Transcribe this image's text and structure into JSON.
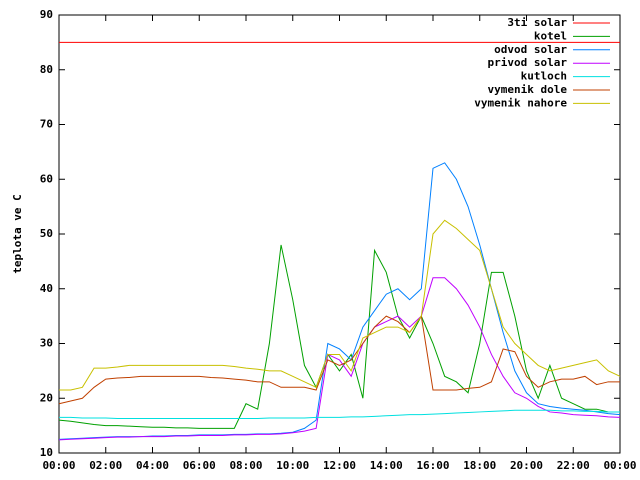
{
  "chart_data": {
    "type": "line",
    "ylabel": "teplota ve C",
    "x": [
      0,
      0.5,
      1,
      1.5,
      2,
      2.5,
      3,
      3.5,
      4,
      4.5,
      5,
      5.5,
      6,
      6.5,
      7,
      7.5,
      8,
      8.5,
      9,
      9.5,
      10,
      10.5,
      11,
      11.5,
      12,
      12.5,
      13,
      13.5,
      14,
      14.5,
      15,
      15.5,
      16,
      16.5,
      17,
      17.5,
      18,
      18.5,
      19,
      19.5,
      20,
      20.5,
      21,
      21.5,
      22,
      22.5,
      23,
      23.5,
      24
    ],
    "xlim": [
      0,
      24
    ],
    "xticks": [
      {
        "value": 0,
        "label": "00:00"
      },
      {
        "value": 2,
        "label": "02:00"
      },
      {
        "value": 4,
        "label": "04:00"
      },
      {
        "value": 6,
        "label": "06:00"
      },
      {
        "value": 8,
        "label": "08:00"
      },
      {
        "value": 10,
        "label": "10:00"
      },
      {
        "value": 12,
        "label": "12:00"
      },
      {
        "value": 14,
        "label": "14:00"
      },
      {
        "value": 16,
        "label": "16:00"
      },
      {
        "value": 18,
        "label": "18:00"
      },
      {
        "value": 20,
        "label": "20:00"
      },
      {
        "value": 22,
        "label": "22:00"
      },
      {
        "value": 24,
        "label": "00:00"
      }
    ],
    "ylim": [
      10,
      90
    ],
    "yticks": [
      10,
      20,
      30,
      40,
      50,
      60,
      70,
      80,
      90
    ],
    "grid": false,
    "legend": "top-right",
    "series": [
      {
        "name": "3ti solar",
        "color": "#ff0000",
        "values": [
          85,
          85,
          85,
          85,
          85,
          85,
          85,
          85,
          85,
          85,
          85,
          85,
          85,
          85,
          85,
          85,
          85,
          85,
          85,
          85,
          85,
          85,
          85,
          85,
          85,
          85,
          85,
          85,
          85,
          85,
          85,
          85,
          85,
          85,
          85,
          85,
          85,
          85,
          85,
          85,
          85,
          85,
          85,
          85,
          85,
          85,
          85,
          85,
          85
        ]
      },
      {
        "name": "kotel",
        "color": "#00a000",
        "values": [
          16,
          15.8,
          15.5,
          15.2,
          15,
          15,
          14.9,
          14.8,
          14.7,
          14.7,
          14.6,
          14.6,
          14.5,
          14.5,
          14.5,
          14.5,
          19,
          18,
          30,
          48,
          38,
          26,
          22,
          28,
          25,
          28,
          20,
          47,
          43,
          35,
          31,
          35,
          30,
          24,
          23,
          21,
          30,
          43,
          43,
          35,
          25,
          20,
          26,
          20,
          19,
          18,
          18,
          17.5,
          17.5
        ]
      },
      {
        "name": "odvod solar",
        "color": "#0080ff",
        "values": [
          12.5,
          12.6,
          12.7,
          12.8,
          12.9,
          13,
          13,
          13,
          13.1,
          13.1,
          13.2,
          13.2,
          13.3,
          13.3,
          13.3,
          13.4,
          13.4,
          13.5,
          13.5,
          13.6,
          13.8,
          14.5,
          16,
          30,
          29,
          27,
          33,
          36,
          39,
          40,
          38,
          40,
          62,
          63,
          60,
          55,
          48,
          40,
          32,
          25,
          21,
          19,
          18.5,
          18.2,
          18,
          17.8,
          17.5,
          17.2,
          17
        ]
      },
      {
        "name": "privod solar",
        "color": "#c000ff",
        "values": [
          12.4,
          12.5,
          12.6,
          12.7,
          12.8,
          12.9,
          12.9,
          13,
          13,
          13,
          13.1,
          13.1,
          13.2,
          13.2,
          13.2,
          13.3,
          13.3,
          13.4,
          13.4,
          13.5,
          13.7,
          14,
          14.5,
          28,
          27,
          24,
          30,
          33,
          34,
          35,
          33,
          35,
          42,
          42,
          40,
          37,
          33,
          28,
          24,
          21,
          20,
          18.5,
          17.5,
          17.3,
          17,
          16.9,
          16.8,
          16.6,
          16.5
        ]
      },
      {
        "name": "kutloch",
        "color": "#00e0e0",
        "values": [
          16.5,
          16.5,
          16.4,
          16.4,
          16.4,
          16.3,
          16.3,
          16.3,
          16.3,
          16.3,
          16.3,
          16.3,
          16.3,
          16.3,
          16.3,
          16.3,
          16.3,
          16.3,
          16.4,
          16.4,
          16.4,
          16.4,
          16.5,
          16.5,
          16.5,
          16.6,
          16.6,
          16.7,
          16.8,
          16.9,
          17,
          17,
          17.1,
          17.2,
          17.3,
          17.4,
          17.5,
          17.6,
          17.7,
          17.8,
          17.8,
          17.8,
          17.8,
          17.7,
          17.7,
          17.6,
          17.6,
          17.5,
          17.5
        ]
      },
      {
        "name": "vymenik dole",
        "color": "#c04000",
        "values": [
          19,
          19.5,
          20,
          22,
          23.5,
          23.7,
          23.8,
          24,
          24,
          24,
          24,
          24,
          24,
          23.8,
          23.7,
          23.5,
          23.3,
          23,
          23,
          22,
          22,
          22,
          21.5,
          27,
          26,
          27,
          30,
          33,
          35,
          34,
          32,
          35,
          21.5,
          21.5,
          21.5,
          21.8,
          22,
          23,
          29,
          28.5,
          24,
          22,
          23,
          23.5,
          23.5,
          24,
          22.5,
          23,
          23
        ]
      },
      {
        "name": "vymenik nahore",
        "color": "#c8c000",
        "values": [
          21.5,
          21.5,
          22,
          25.5,
          25.5,
          25.7,
          26,
          26,
          26,
          26,
          26,
          26,
          26,
          26,
          26,
          25.8,
          25.5,
          25.3,
          25,
          25,
          24,
          23,
          22,
          28,
          28,
          25,
          31,
          32,
          33,
          33,
          32,
          35,
          50,
          52.5,
          51,
          49,
          47,
          40,
          33,
          30,
          28,
          26,
          25,
          25.5,
          26,
          26.5,
          27,
          25,
          24
        ]
      }
    ]
  }
}
